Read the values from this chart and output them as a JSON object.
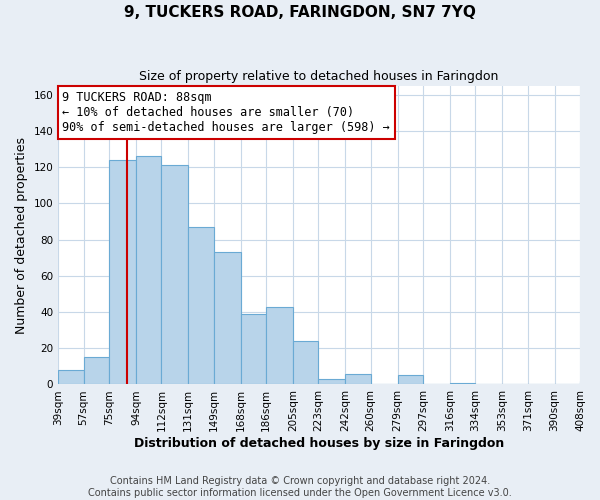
{
  "title": "9, TUCKERS ROAD, FARINGDON, SN7 7YQ",
  "subtitle": "Size of property relative to detached houses in Faringdon",
  "xlabel": "Distribution of detached houses by size in Faringdon",
  "ylabel": "Number of detached properties",
  "bin_labels": [
    "39sqm",
    "57sqm",
    "75sqm",
    "94sqm",
    "112sqm",
    "131sqm",
    "149sqm",
    "168sqm",
    "186sqm",
    "205sqm",
    "223sqm",
    "242sqm",
    "260sqm",
    "279sqm",
    "297sqm",
    "316sqm",
    "334sqm",
    "353sqm",
    "371sqm",
    "390sqm",
    "408sqm"
  ],
  "bin_edges": [
    39,
    57,
    75,
    94,
    112,
    131,
    149,
    168,
    186,
    205,
    223,
    242,
    260,
    279,
    297,
    316,
    334,
    353,
    371,
    390,
    408
  ],
  "bar_heights": [
    8,
    15,
    124,
    126,
    121,
    87,
    73,
    39,
    43,
    24,
    3,
    6,
    0,
    5,
    0,
    1,
    0,
    0,
    0,
    0,
    2
  ],
  "bar_color": "#b8d4ea",
  "bar_edge_color": "#6aaad4",
  "property_line_x": 88,
  "property_line_color": "#cc0000",
  "ylim": [
    0,
    165
  ],
  "yticks": [
    0,
    20,
    40,
    60,
    80,
    100,
    120,
    140,
    160
  ],
  "annotation_title": "9 TUCKERS ROAD: 88sqm",
  "annotation_line1": "← 10% of detached houses are smaller (70)",
  "annotation_line2": "90% of semi-detached houses are larger (598) →",
  "annotation_box_color": "#ffffff",
  "annotation_box_edge_color": "#cc0000",
  "footer_line1": "Contains HM Land Registry data © Crown copyright and database right 2024.",
  "footer_line2": "Contains public sector information licensed under the Open Government Licence v3.0.",
  "background_color": "#e8eef5",
  "plot_background_color": "#ffffff",
  "grid_color": "#c8d8e8",
  "title_fontsize": 11,
  "subtitle_fontsize": 9,
  "ylabel_fontsize": 9,
  "xlabel_fontsize": 9,
  "tick_fontsize": 7.5,
  "footer_fontsize": 7,
  "annotation_fontsize": 8.5
}
